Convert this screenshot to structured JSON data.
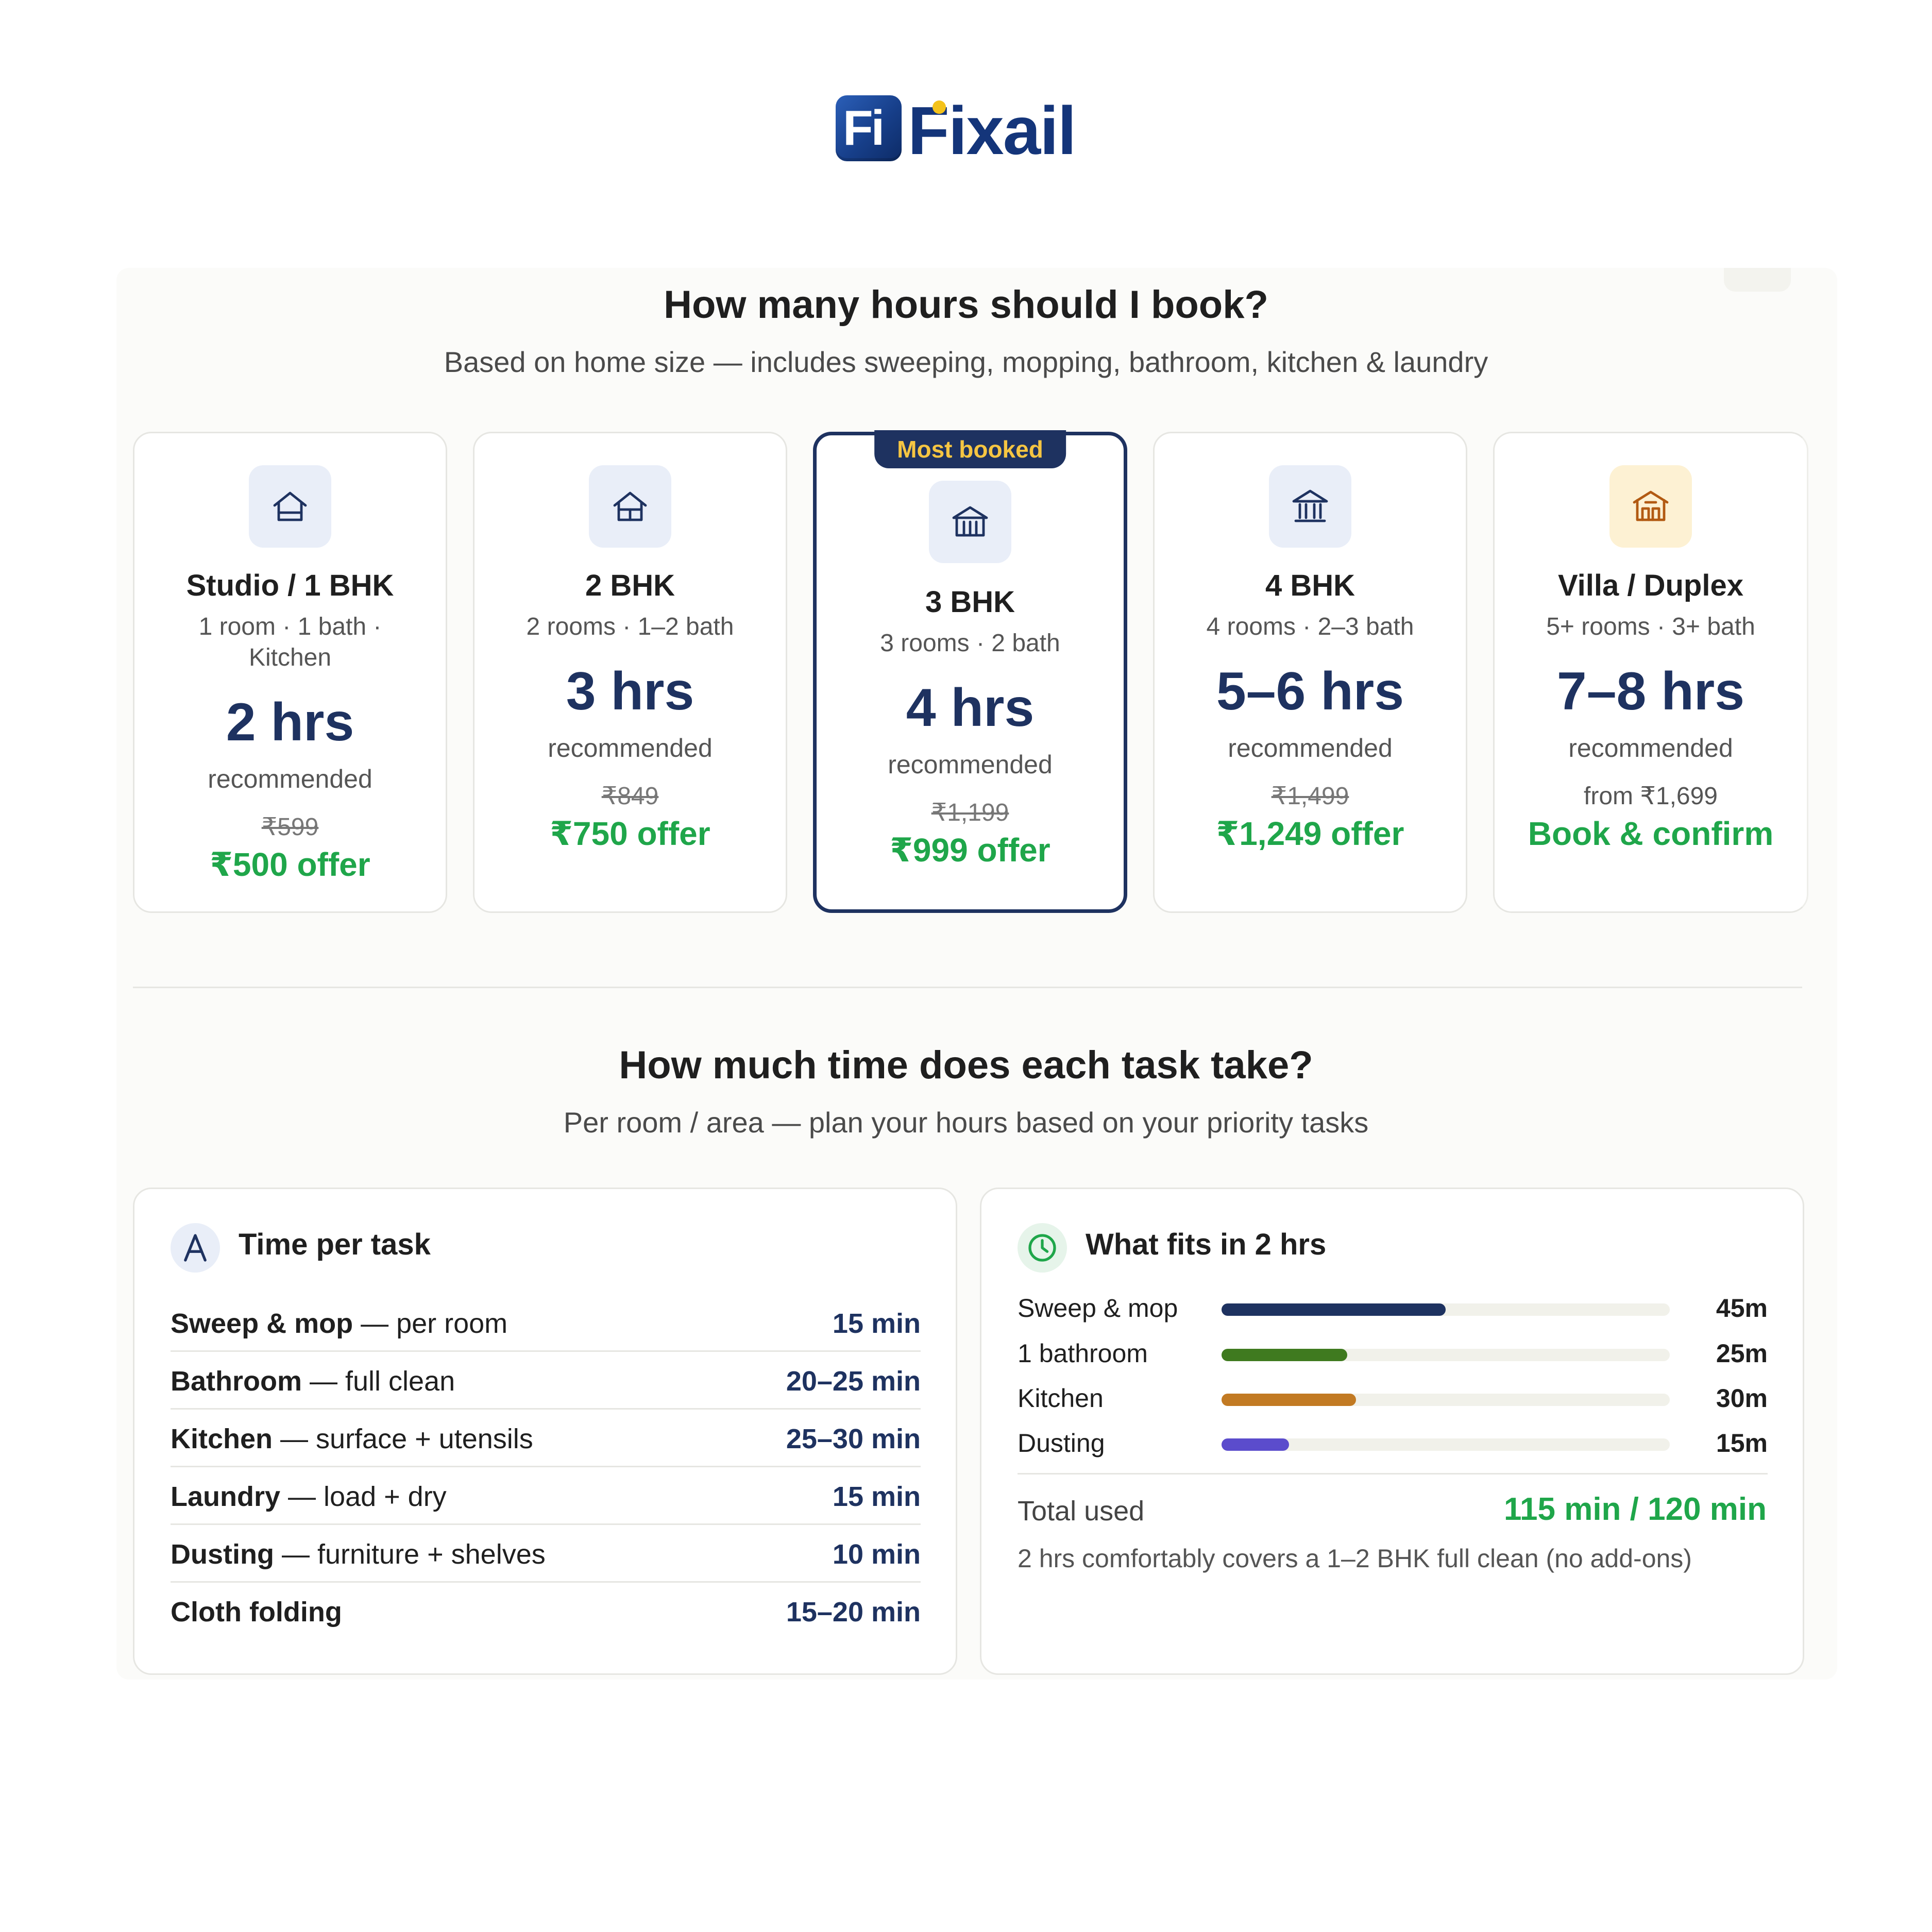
{
  "brand": {
    "mark": "Fi",
    "name": "Fixail",
    "colors": {
      "primary": "#14357a",
      "accent_dot": "#f4c21b"
    }
  },
  "hours_section": {
    "title": "How many hours should I book?",
    "subtitle": "Based on home size — includes sweeping, mopping, bathroom, kitchen & laundry",
    "cards": [
      {
        "icon": "house-icon",
        "title": "Studio / 1 BHK",
        "desc_line1": "1 room · 1 bath ·",
        "desc_line2": "Kitchen",
        "hours": "2 hrs",
        "recommended": "recommended",
        "old_price": "₹599",
        "offer": "₹500 offer"
      },
      {
        "icon": "house-icon",
        "title": "2 BHK",
        "desc_line1": "2 rooms · 1–2 bath",
        "hours": "3 hrs",
        "recommended": "recommended",
        "old_price": "₹849",
        "offer": "₹750 offer"
      },
      {
        "icon": "building-icon",
        "badge": "Most booked",
        "title": "3 BHK",
        "desc_line1": "3 rooms · 2 bath",
        "hours": "4 hrs",
        "recommended": "recommended",
        "old_price": "₹1,199",
        "offer": "₹999 offer"
      },
      {
        "icon": "bank-building-icon",
        "title": "4 BHK",
        "desc_line1": "4 rooms · 2–3 bath",
        "hours": "5–6 hrs",
        "recommended": "recommended",
        "old_price": "₹1,499",
        "offer": "₹1,249 offer"
      },
      {
        "icon": "villa-icon",
        "title": "Villa / Duplex",
        "desc_line1": "5+ rooms · 3+ bath",
        "hours": "7–8 hrs",
        "recommended": "recommended",
        "from_price": "from ₹1,699",
        "offer": "Book & confirm"
      }
    ]
  },
  "task_section": {
    "title": "How much time does each task take?",
    "subtitle": "Per room / area — plan your hours based on your priority tasks"
  },
  "time_per_task": {
    "icon": "letter-a-icon",
    "title": "Time per task",
    "rows": [
      {
        "name": "Sweep & mop",
        "detail": " — per room",
        "value": "15 min"
      },
      {
        "name": "Bathroom",
        "detail": " — full clean",
        "value": "20–25 min"
      },
      {
        "name": "Kitchen",
        "detail": " — surface + utensils",
        "value": "25–30 min"
      },
      {
        "name": "Laundry",
        "detail": " — load + dry",
        "value": "15 min"
      },
      {
        "name": "Dusting",
        "detail": " — furniture + shelves",
        "value": "10 min"
      },
      {
        "name": "Cloth folding",
        "detail": "",
        "value": "15–20 min"
      }
    ]
  },
  "what_fits": {
    "icon": "clock-icon",
    "title": "What fits in 2 hrs",
    "rows": [
      {
        "label": "Sweep & mop",
        "value": "45m",
        "fraction": 0.5,
        "color": "#1e3260"
      },
      {
        "label": "1 bathroom",
        "value": "25m",
        "fraction": 0.28,
        "color": "#3f7a1f"
      },
      {
        "label": "Kitchen",
        "value": "30m",
        "fraction": 0.3,
        "color": "#c27a23"
      },
      {
        "label": "Dusting",
        "value": "15m",
        "fraction": 0.15,
        "color": "#5b4ccc"
      }
    ],
    "total_label": "Total used",
    "total_value": "115 min / 120 min",
    "note": "2 hrs comfortably covers a 1–2 BHK full clean (no add-ons)"
  }
}
